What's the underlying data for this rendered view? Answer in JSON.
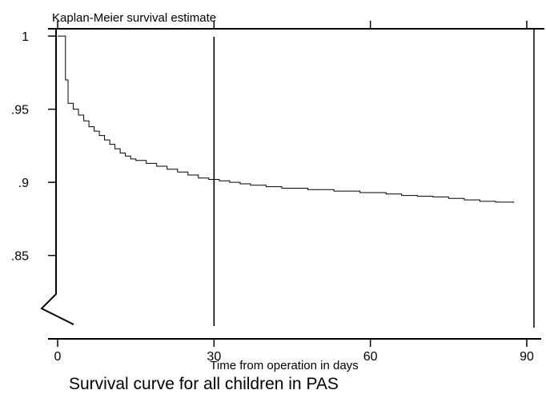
{
  "chart_data": {
    "type": "line",
    "title": "Kaplan-Meier survival estimate",
    "caption": "Survival curve for all children in PAS",
    "xlabel": "Time from operation in days",
    "ylabel": "",
    "xlim": [
      0,
      92
    ],
    "ylim": [
      0.805,
      1.005
    ],
    "x_ticks": [
      {
        "value": 0,
        "label": "0"
      },
      {
        "value": 30,
        "label": "30"
      },
      {
        "value": 60,
        "label": "60"
      },
      {
        "value": 90,
        "label": "90"
      }
    ],
    "y_ticks": [
      {
        "value": 1.0,
        "label": "1"
      },
      {
        "value": 0.95,
        "label": ".95"
      },
      {
        "value": 0.9,
        "label": ".9"
      },
      {
        "value": 0.85,
        "label": ".85"
      }
    ],
    "reference_line": {
      "axis": "x",
      "value": 30
    },
    "grid": false,
    "series": [
      {
        "x": [
          0,
          1.5,
          2.0,
          3.0,
          4.0,
          5.0,
          6.0,
          7.0,
          8.0,
          9.0,
          10.0,
          11.0,
          12.0,
          13.0,
          14.0,
          15.0,
          17.0,
          19.0,
          21.0,
          23.0,
          25.0,
          27.0,
          29.0,
          31.0,
          33.0,
          35.0,
          37.0,
          40.0,
          43.0,
          48.0,
          53.0,
          58.0,
          63.0,
          66.0,
          69.0,
          72.0,
          75.0,
          78.0,
          81.0,
          84.0,
          87.5
        ],
        "y": [
          1.0,
          0.97,
          0.954,
          0.95,
          0.946,
          0.942,
          0.938,
          0.935,
          0.932,
          0.929,
          0.926,
          0.923,
          0.92,
          0.918,
          0.916,
          0.915,
          0.913,
          0.911,
          0.909,
          0.907,
          0.905,
          0.903,
          0.902,
          0.901,
          0.9,
          0.899,
          0.898,
          0.897,
          0.896,
          0.895,
          0.894,
          0.893,
          0.892,
          0.891,
          0.8905,
          0.89,
          0.889,
          0.888,
          0.887,
          0.8865,
          0.886
        ]
      }
    ]
  }
}
